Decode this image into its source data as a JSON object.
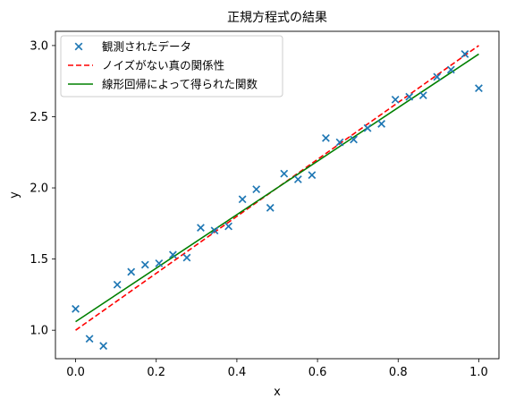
{
  "chart_data": {
    "type": "scatter",
    "title": "正規方程式の結果",
    "xlabel": "x",
    "ylabel": "y",
    "xlim": [
      -0.05,
      1.05
    ],
    "ylim": [
      0.8,
      3.1
    ],
    "xticks": [
      0.0,
      0.2,
      0.4,
      0.6,
      0.8,
      1.0
    ],
    "xtick_labels": [
      "0.0",
      "0.2",
      "0.4",
      "0.6",
      "0.8",
      "1.0"
    ],
    "yticks": [
      1.0,
      1.5,
      2.0,
      2.5,
      3.0
    ],
    "ytick_labels": [
      "1.0",
      "1.5",
      "2.0",
      "2.5",
      "3.0"
    ],
    "grid": false,
    "legend_position": "top-left",
    "series": [
      {
        "name": "観測されたデータ",
        "kind": "scatter",
        "marker": "x",
        "color": "#1f77b4",
        "x": [
          0.0,
          0.0345,
          0.069,
          0.1034,
          0.1379,
          0.1724,
          0.2069,
          0.2414,
          0.2759,
          0.3103,
          0.3448,
          0.3793,
          0.4138,
          0.4483,
          0.4828,
          0.5172,
          0.5517,
          0.5862,
          0.6207,
          0.6552,
          0.6897,
          0.7241,
          0.7586,
          0.7931,
          0.8276,
          0.8621,
          0.8966,
          0.931,
          0.9655,
          1.0
        ],
        "y": [
          1.15,
          0.94,
          0.89,
          1.32,
          1.41,
          1.46,
          1.47,
          1.53,
          1.51,
          1.72,
          1.7,
          1.73,
          1.92,
          1.99,
          1.86,
          2.1,
          2.06,
          2.09,
          2.35,
          2.32,
          2.34,
          2.42,
          2.45,
          2.62,
          2.64,
          2.65,
          2.78,
          2.83,
          2.94,
          2.7
        ]
      },
      {
        "name": "ノイズがない真の関係性",
        "kind": "line",
        "style": "dashed",
        "color": "#ff0000",
        "x": [
          0.0,
          1.0
        ],
        "y": [
          1.0,
          3.0
        ]
      },
      {
        "name": "線形回帰によって得られた関数",
        "kind": "line",
        "style": "solid",
        "color": "#008000",
        "x": [
          0.0,
          1.0
        ],
        "y": [
          1.06,
          2.94
        ]
      }
    ]
  }
}
